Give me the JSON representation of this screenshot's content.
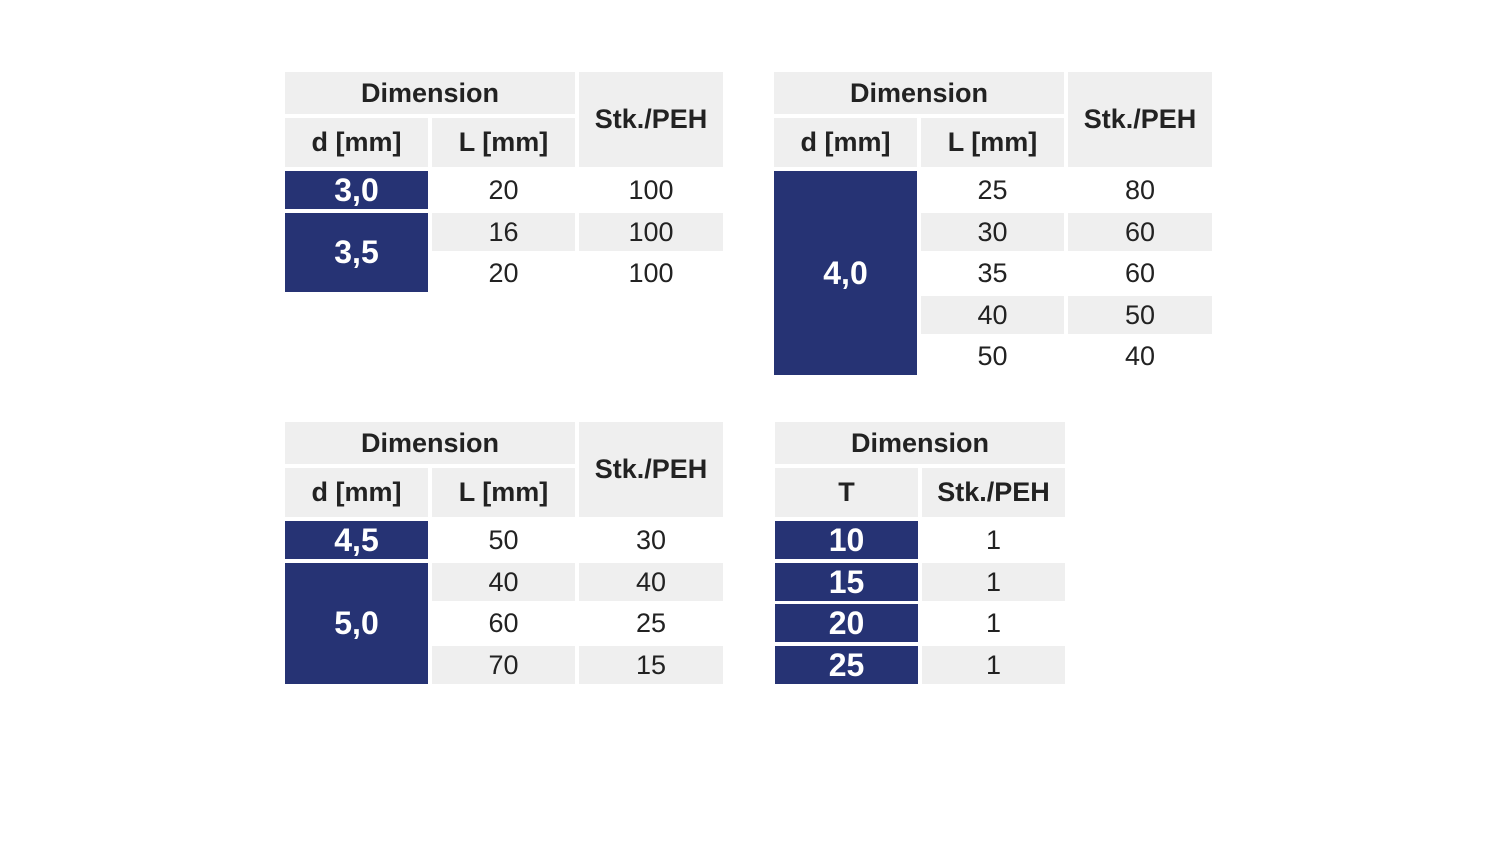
{
  "tables": [
    {
      "headers": {
        "group": "Dimension",
        "d": "d [mm]",
        "l": "L [mm]",
        "pcs": "Stk./PEH"
      },
      "groups": [
        {
          "d": "3,0",
          "rows": [
            {
              "l": "20",
              "pcs": "100"
            }
          ]
        },
        {
          "d": "3,5",
          "rows": [
            {
              "l": "16",
              "pcs": "100"
            },
            {
              "l": "20",
              "pcs": "100"
            }
          ]
        }
      ]
    },
    {
      "headers": {
        "group": "Dimension",
        "d": "d [mm]",
        "l": "L [mm]",
        "pcs": "Stk./PEH"
      },
      "groups": [
        {
          "d": "4,0",
          "rows": [
            {
              "l": "25",
              "pcs": "80"
            },
            {
              "l": "30",
              "pcs": "60"
            },
            {
              "l": "35",
              "pcs": "60"
            },
            {
              "l": "40",
              "pcs": "50"
            },
            {
              "l": "50",
              "pcs": "40"
            }
          ]
        }
      ]
    },
    {
      "headers": {
        "group": "Dimension",
        "d": "d [mm]",
        "l": "L [mm]",
        "pcs": "Stk./PEH"
      },
      "groups": [
        {
          "d": "4,5",
          "rows": [
            {
              "l": "50",
              "pcs": "30"
            }
          ]
        },
        {
          "d": "5,0",
          "rows": [
            {
              "l": "40",
              "pcs": "40"
            },
            {
              "l": "60",
              "pcs": "25"
            },
            {
              "l": "70",
              "pcs": "15"
            }
          ]
        }
      ]
    },
    {
      "headers": {
        "group": "Dimension",
        "t": "T",
        "pcs": "Stk./PEH"
      },
      "rows": [
        {
          "t": "10",
          "pcs": "1"
        },
        {
          "t": "15",
          "pcs": "1"
        },
        {
          "t": "20",
          "pcs": "1"
        },
        {
          "t": "25",
          "pcs": "1"
        }
      ]
    }
  ]
}
